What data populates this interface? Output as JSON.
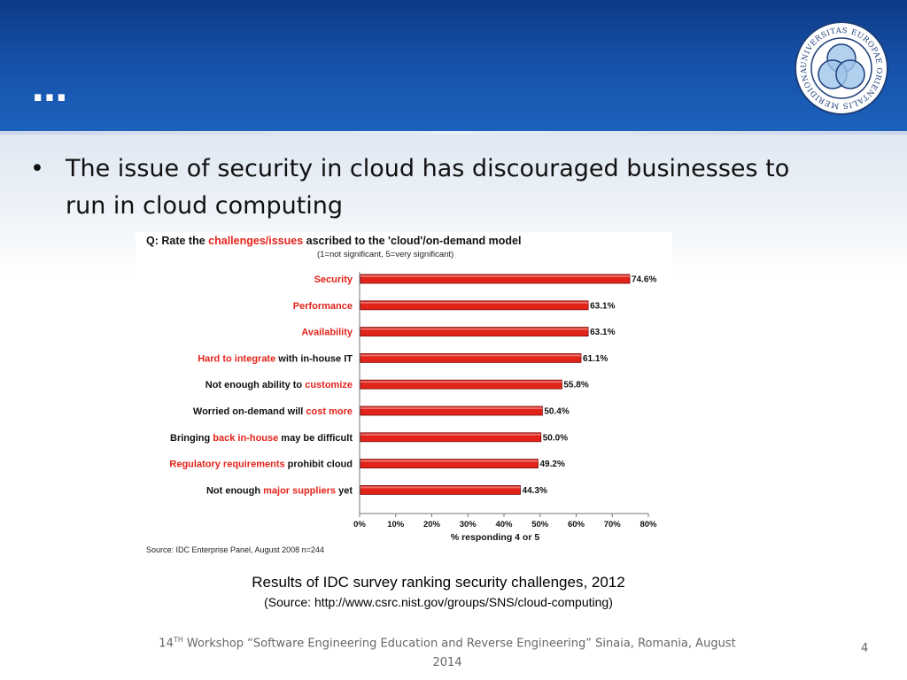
{
  "slide": {
    "title": "…",
    "bullet": "The issue of security in cloud has discouraged businesses to run in cloud computing",
    "caption_main": "Results of IDC survey ranking security challenges, 2012",
    "caption_source": "(Source: http://www.csrc.nist.gov/groups/SNS/cloud-computing)",
    "footer_num": "14",
    "footer_sup": "TH",
    "footer_text": " Workshop “Software Engineering Education and Reverse Engineering”  Sinaia, Romania, August 2014",
    "page_number": "4",
    "logo_text": "UNIVERSITAS EUROPAE ORIENTALIS MERIDIONALIS · 2 0 0 1 ·"
  },
  "colors": {
    "header": "#1550a8",
    "bar": "#e2231a",
    "highlight": "#e2231a"
  },
  "chart_data": {
    "type": "bar",
    "orientation": "horizontal",
    "title_prefix": "Q: Rate the ",
    "title_highlight": "challenges/issues",
    "title_suffix": " ascribed to the 'cloud'/on-demand model",
    "subtitle": "(1=not significant, 5=very significant)",
    "categories": [
      [
        {
          "t": "Security",
          "h": true
        }
      ],
      [
        {
          "t": "Performance",
          "h": true
        }
      ],
      [
        {
          "t": "Availability",
          "h": true
        }
      ],
      [
        {
          "t": "Hard to integrate",
          "h": true
        },
        {
          "t": " with in-house IT",
          "h": false
        }
      ],
      [
        {
          "t": "Not enough ability to ",
          "h": false
        },
        {
          "t": "customize",
          "h": true
        }
      ],
      [
        {
          "t": "Worried on-demand will ",
          "h": false
        },
        {
          "t": "cost more",
          "h": true
        }
      ],
      [
        {
          "t": "Bringing ",
          "h": false
        },
        {
          "t": "back in-house",
          "h": true
        },
        {
          "t": " may be difficult",
          "h": false
        }
      ],
      [
        {
          "t": "Regulatory requirements",
          "h": true
        },
        {
          "t": " prohibit cloud",
          "h": false
        }
      ],
      [
        {
          "t": "Not enough ",
          "h": false
        },
        {
          "t": "major suppliers",
          "h": true
        },
        {
          "t": " yet",
          "h": false
        }
      ]
    ],
    "values": [
      74.6,
      63.1,
      63.1,
      61.1,
      55.8,
      50.4,
      50.0,
      49.2,
      44.3
    ],
    "value_labels": [
      "74.6%",
      "63.1%",
      "63.1%",
      "61.1%",
      "55.8%",
      "50.4%",
      "50.0%",
      "49.2%",
      "44.3%"
    ],
    "xlim": [
      0,
      80
    ],
    "xticks": [
      "0%",
      "10%",
      "20%",
      "30%",
      "40%",
      "50%",
      "60%",
      "70%",
      "80%"
    ],
    "xlabel": "% responding 4 or 5",
    "source": "Source: IDC Enterprise Panel, August 2008  n=244"
  }
}
